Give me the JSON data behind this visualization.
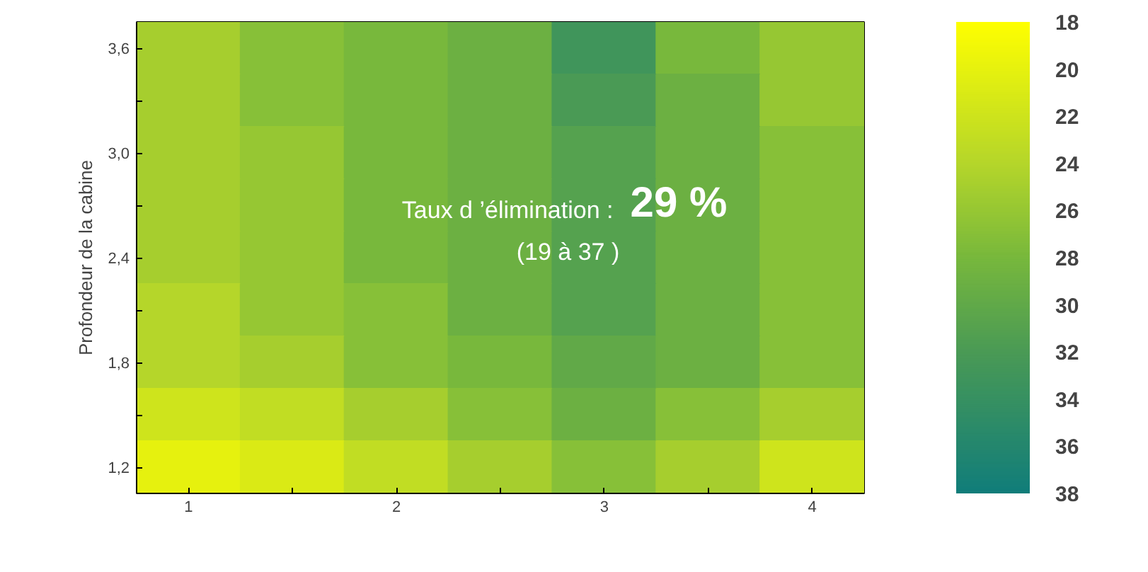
{
  "chart_data": {
    "type": "heatmap",
    "ylabel": "Profondeur de la cabine",
    "annotations": [
      "Taux d ’élimination  :",
      "29 %",
      "(19 à 37 )"
    ],
    "categories": [
      "1",
      null,
      "2",
      null,
      "3",
      null,
      "4"
    ],
    "y_categories": [
      "3,6",
      null,
      "3,0",
      null,
      "2,4",
      null,
      "1,8",
      null,
      "1,2"
    ],
    "cells": [
      [
        25,
        27,
        28,
        29,
        33,
        28,
        26
      ],
      [
        25,
        27,
        28,
        29,
        32,
        29,
        26
      ],
      [
        25,
        26,
        28,
        29,
        31,
        29,
        27
      ],
      [
        25,
        26,
        28,
        29,
        31,
        29,
        27
      ],
      [
        25,
        26,
        28,
        29,
        31,
        29,
        27
      ],
      [
        24,
        26,
        27,
        29,
        31,
        29,
        27
      ],
      [
        24,
        25,
        27,
        28,
        30,
        29,
        27
      ],
      [
        22,
        23,
        25,
        27,
        29,
        27,
        25
      ],
      [
        20,
        21,
        23,
        25,
        27,
        25,
        22
      ]
    ],
    "clim": [
      18,
      38
    ],
    "cticks": [
      18,
      20,
      22,
      24,
      26,
      28,
      30,
      32,
      34,
      36,
      38
    ]
  }
}
